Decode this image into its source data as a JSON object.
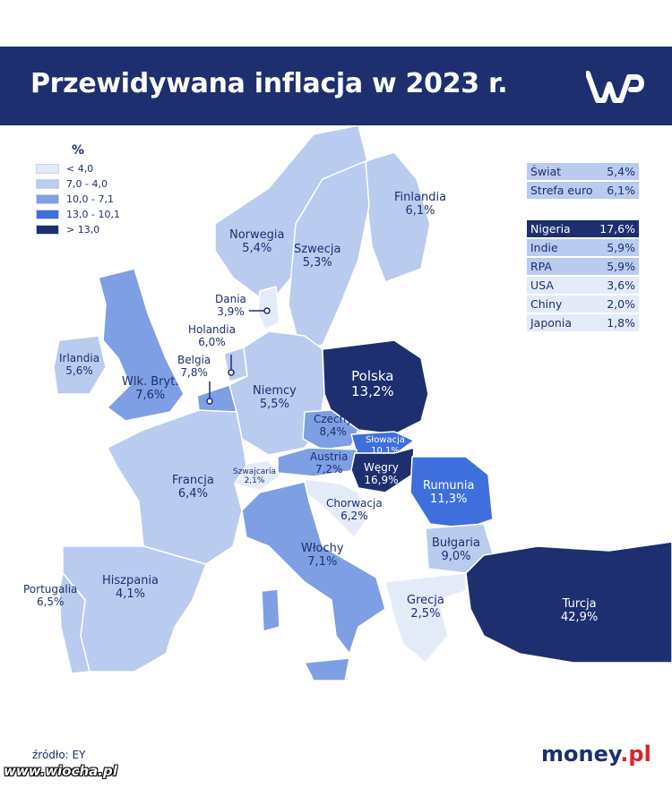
{
  "title": "Przewidywana inflacja w 2023 r.",
  "logo": {
    "name": "wp-logo"
  },
  "legend": {
    "title": "%",
    "items": [
      {
        "label": "< 4,0",
        "color": "#e4ebf8"
      },
      {
        "label": "7,0 - 4,0",
        "color": "#b9cbef"
      },
      {
        "label": "10,0 - 7,1",
        "color": "#7e9fe3"
      },
      {
        "label": "13,0 - 10,1",
        "color": "#3f6fdc"
      },
      {
        "label": "> 13,0",
        "color": "#1d2f6f"
      }
    ]
  },
  "world_stats": [
    {
      "name": "Świat",
      "value": "5,4%",
      "color": "#b9cbef"
    },
    {
      "name": "Strefa euro",
      "value": "6,1%",
      "color": "#b9cbef"
    }
  ],
  "other_countries": [
    {
      "name": "Nigeria",
      "value": "17,6%",
      "color": "#1d2f6f"
    },
    {
      "name": "Indie",
      "value": "5,9%",
      "color": "#b9cbef"
    },
    {
      "name": "RPA",
      "value": "5,9%",
      "color": "#b9cbef"
    },
    {
      "name": "USA",
      "value": "3,6%",
      "color": "#e4ebf8"
    },
    {
      "name": "Chiny",
      "value": "2,0%",
      "color": "#e4ebf8"
    },
    {
      "name": "Japonia",
      "value": "1,8%",
      "color": "#e4ebf8"
    }
  ],
  "countries": {
    "finlandia": {
      "name": "Finlandia",
      "value": "6,1%"
    },
    "norwegia": {
      "name": "Norwegia",
      "value": "5,4%"
    },
    "szwecja": {
      "name": "Szwecja",
      "value": "5,3%"
    },
    "dania": {
      "name": "Dania",
      "value": "3,9%"
    },
    "irlandia": {
      "name": "Irlandia",
      "value": "5,6%"
    },
    "wlk_bryt": {
      "name": "Wlk. Bryt.",
      "value": "7,6%"
    },
    "holandia": {
      "name": "Holandia",
      "value": "6,0%"
    },
    "belgia": {
      "name": "Belgia",
      "value": "7,8%"
    },
    "niemcy": {
      "name": "Niemcy",
      "value": "5,5%"
    },
    "polska": {
      "name": "Polska",
      "value": "13,2%"
    },
    "czechy": {
      "name": "Czechy",
      "value": "8,4%"
    },
    "slowacja": {
      "name": "Słowacja",
      "value": "10,1%"
    },
    "austria": {
      "name": "Austria",
      "value": "7,2%"
    },
    "wegry": {
      "name": "Węgry",
      "value": "16,9%"
    },
    "rumunia": {
      "name": "Rumunia",
      "value": "11,3%"
    },
    "szwajcaria": {
      "name": "Szwajcaria",
      "value": "2,1%"
    },
    "francja": {
      "name": "Francja",
      "value": "6,4%"
    },
    "chorwacja": {
      "name": "Chorwacja",
      "value": "6,2%"
    },
    "bulgaria": {
      "name": "Bułgaria",
      "value": "9,0%"
    },
    "wlochy": {
      "name": "Włochy",
      "value": "7,1%"
    },
    "hiszpania": {
      "name": "Hiszpania",
      "value": "4,1%"
    },
    "portugalia": {
      "name": "Portugalia",
      "value": "6,5%"
    },
    "grecja": {
      "name": "Grecja",
      "value": "2,5%"
    },
    "turcja": {
      "name": "Turcja",
      "value": "42,9%"
    }
  },
  "source": "źródło: EY",
  "brand": {
    "main": "money",
    "suffix": ".pl"
  },
  "watermark": "www.wiocha.pl"
}
